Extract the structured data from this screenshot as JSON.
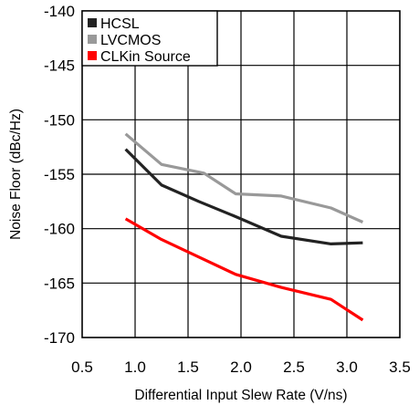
{
  "chart_data": {
    "type": "line",
    "xlabel": "Differential Input Slew Rate (V/ns)",
    "ylabel": "Noise Floor (dBc/Hz)",
    "xlim": [
      0.5,
      3.5
    ],
    "ylim": [
      -170,
      -140
    ],
    "xticks": [
      "0.5",
      "1.0",
      "1.5",
      "2.0",
      "2.5",
      "3.0",
      "3.5"
    ],
    "yticks": [
      "-140",
      "-145",
      "-150",
      "-155",
      "-160",
      "-165",
      "-170"
    ],
    "grid": true,
    "legend_position": "top-left",
    "series": [
      {
        "name": "HCSL",
        "color": "#222222",
        "x": [
          0.91,
          1.25,
          1.6,
          1.95,
          2.38,
          2.85,
          3.15
        ],
        "y": [
          -152.7,
          -156.0,
          -157.5,
          -158.9,
          -160.7,
          -161.4,
          -161.3
        ]
      },
      {
        "name": "LVCMOS",
        "color": "#999999",
        "x": [
          0.91,
          1.25,
          1.65,
          1.95,
          2.38,
          2.85,
          3.15
        ],
        "y": [
          -151.3,
          -154.1,
          -154.9,
          -156.8,
          -157.0,
          -158.1,
          -159.4
        ]
      },
      {
        "name": "CLKin Source",
        "color": "#ff0000",
        "x": [
          0.91,
          1.25,
          1.6,
          1.95,
          2.38,
          2.85,
          3.15
        ],
        "y": [
          -159.1,
          -161.0,
          -162.6,
          -164.2,
          -165.4,
          -166.5,
          -168.4
        ]
      }
    ]
  }
}
